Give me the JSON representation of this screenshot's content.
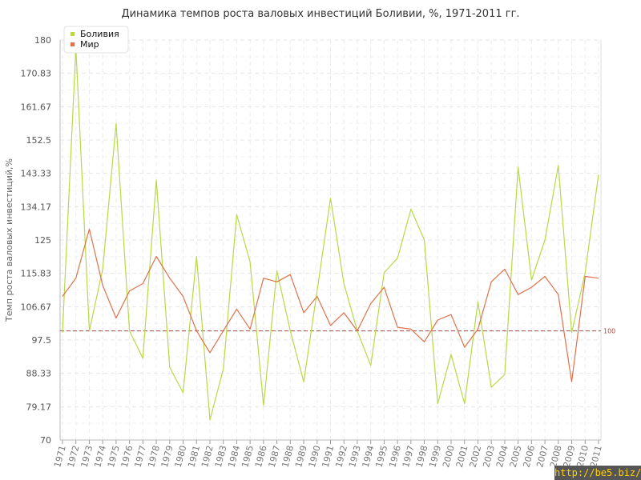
{
  "chart_data": {
    "type": "line",
    "title": "Динамика темпов роста валовых инвестиций Боливии, %, 1971-2011 гг.",
    "ylabel": "Темп роста валовых инвестиций,%",
    "xlabel": "",
    "ylim": [
      70,
      180
    ],
    "yticks": [
      "70",
      "79.17",
      "88.33",
      "97.5",
      "106.67",
      "115.83",
      "125",
      "134.17",
      "143.33",
      "152.5",
      "161.67",
      "170.83",
      "180"
    ],
    "x": [
      "1971",
      "1972",
      "1973",
      "1974",
      "1975",
      "1976",
      "1977",
      "1978",
      "1979",
      "1980",
      "1981",
      "1982",
      "1983",
      "1984",
      "1985",
      "1986",
      "1987",
      "1988",
      "1989",
      "1990",
      "1991",
      "1992",
      "1993",
      "1994",
      "1995",
      "1996",
      "1997",
      "1998",
      "1999",
      "2000",
      "2001",
      "2002",
      "2003",
      "2004",
      "2005",
      "2006",
      "2007",
      "2008",
      "2009",
      "2010",
      "2011"
    ],
    "series": [
      {
        "name": "Боливия",
        "color": "#b8d847",
        "values": [
          99.5,
          178,
          100,
          117,
          157,
          100,
          92.5,
          141.5,
          90,
          83,
          120.5,
          75.5,
          89.5,
          132,
          119,
          79.5,
          116.5,
          100,
          86,
          111,
          136.5,
          113,
          100,
          90.5,
          116,
          120,
          133.5,
          125,
          80,
          93.5,
          80,
          108,
          84.5,
          88,
          145,
          114,
          125,
          145.5,
          99.5,
          116,
          143
        ]
      },
      {
        "name": "Мир",
        "color": "#e0714b",
        "values": [
          109.5,
          114.5,
          128,
          112.5,
          103.5,
          111,
          113,
          120.5,
          114.5,
          109.5,
          100,
          94,
          100,
          106,
          100.5,
          114.5,
          113.5,
          115.5,
          105,
          109.5,
          101.5,
          105,
          100,
          107.5,
          112,
          101,
          100.5,
          97,
          103,
          104.5,
          95.5,
          100.5,
          113.5,
          117,
          110,
          112,
          115,
          110,
          86,
          115,
          114.5
        ]
      }
    ],
    "reference_line": {
      "value": 100,
      "label": "100",
      "color": "#a8483c"
    },
    "grid": true,
    "legend": "top-left"
  },
  "watermark": "http://be5.biz/"
}
